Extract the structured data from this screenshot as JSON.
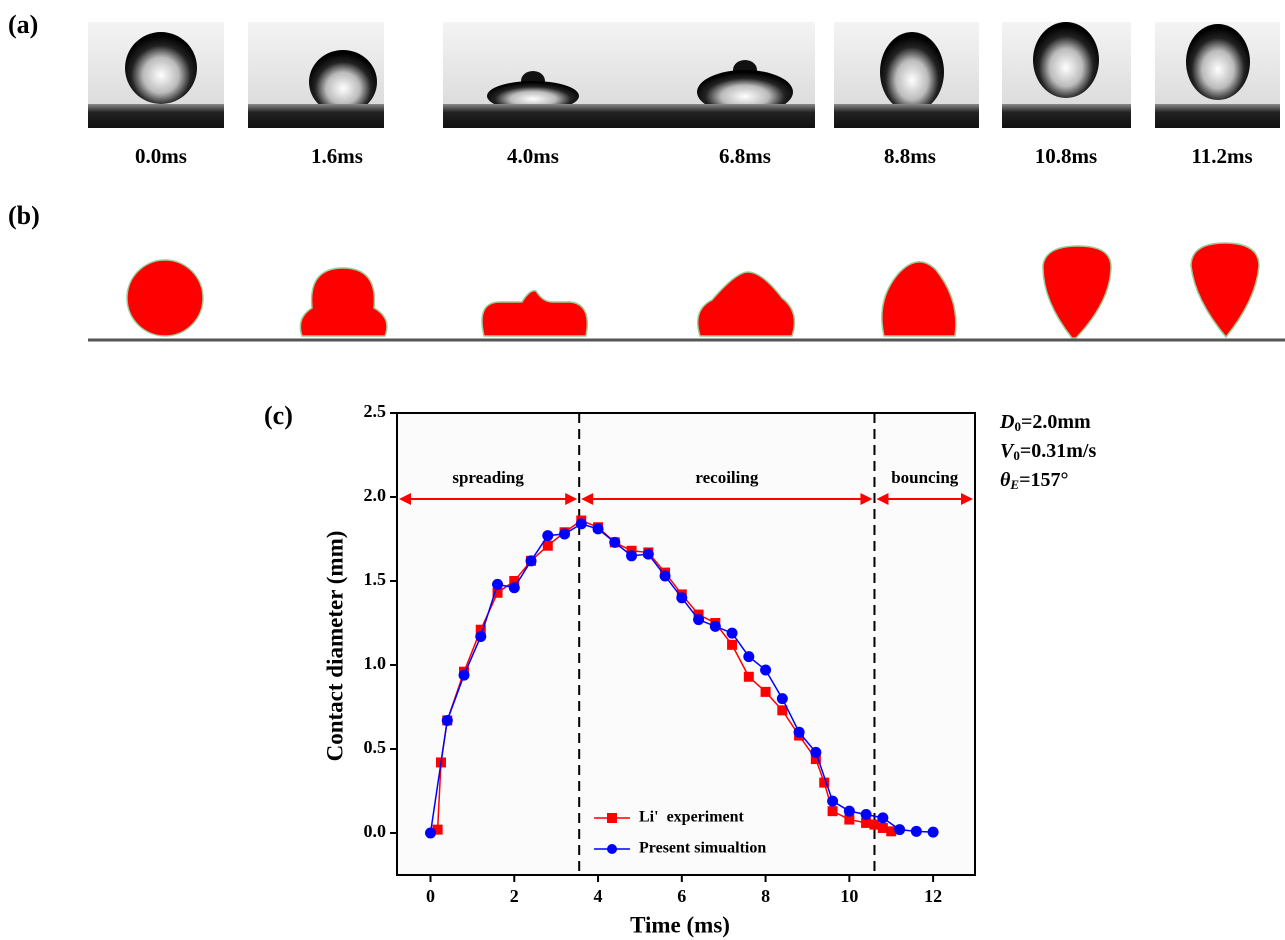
{
  "panels": [
    {
      "label": "(a)",
      "frames": [
        "0.0ms",
        "1.6ms",
        "4.0ms",
        "6.8ms",
        "8.8ms",
        "10.8ms",
        "11.2ms"
      ]
    },
    {
      "label": "(b)"
    }
  ],
  "chart_data": {
    "type": "line",
    "panel_label": "(c)",
    "x_label": "Time (ms)",
    "y_label": "Contact diameter (mm)",
    "xlim": [
      -0.8,
      13
    ],
    "ylim": [
      -0.25,
      2.5
    ],
    "xticks": [
      0,
      2,
      4,
      6,
      8,
      10,
      12
    ],
    "yticks": [
      {
        "value": 0,
        "label": "0.0"
      },
      0.5,
      {
        "value": 1,
        "label": "1.0"
      },
      1.5,
      {
        "value": 2,
        "label": "2.0"
      },
      2.5
    ],
    "legend": "lower center",
    "phases": [
      {
        "label": "spreading",
        "start": -0.8,
        "end": 3.55
      },
      {
        "label": "recoiling",
        "start": 3.55,
        "end": 10.6
      },
      {
        "label": "bouncing",
        "start": 10.6,
        "end": 13
      }
    ],
    "phase_color": "#ff0000",
    "parameters": [
      {
        "symbol": "D",
        "subscript": "0",
        "text": "=2.0mm"
      },
      {
        "symbol": "V",
        "subscript": "0",
        "text": "=0.31m/s"
      },
      {
        "symbol": "θ",
        "subscript": "E",
        "text": "=157°"
      }
    ],
    "series": [
      {
        "name": "Li'  experiment",
        "color": "#ff0000",
        "marker": "square",
        "x": [
          0.17,
          0.25,
          0.4,
          0.8,
          1.2,
          1.6,
          2.0,
          2.4,
          2.8,
          3.2,
          3.6,
          4.0,
          4.4,
          4.8,
          5.2,
          5.6,
          6.0,
          6.4,
          6.8,
          7.2,
          7.6,
          8.0,
          8.4,
          8.8,
          9.2,
          9.4,
          9.6,
          10.0,
          10.4,
          10.6,
          10.8,
          11.0
        ],
        "values": [
          0.02,
          0.42,
          0.67,
          0.96,
          1.21,
          1.43,
          1.5,
          1.62,
          1.71,
          1.79,
          1.86,
          1.82,
          1.73,
          1.68,
          1.67,
          1.55,
          1.42,
          1.3,
          1.25,
          1.12,
          0.93,
          0.84,
          0.73,
          0.58,
          0.44,
          0.3,
          0.13,
          0.08,
          0.06,
          0.05,
          0.03,
          0.01
        ]
      },
      {
        "name": "Present simualtion",
        "color": "#0000ff",
        "marker": "circle",
        "x": [
          0,
          0.4,
          0.8,
          1.2,
          1.6,
          2.0,
          2.4,
          2.8,
          3.2,
          3.6,
          4.0,
          4.4,
          4.8,
          5.2,
          5.6,
          6.0,
          6.4,
          6.8,
          7.2,
          7.6,
          8.0,
          8.4,
          8.8,
          9.2,
          9.6,
          10.0,
          10.4,
          10.8,
          11.2,
          11.6,
          12.0
        ],
        "values": [
          0,
          0.67,
          0.94,
          1.17,
          1.48,
          1.46,
          1.62,
          1.77,
          1.78,
          1.84,
          1.81,
          1.73,
          1.65,
          1.66,
          1.53,
          1.4,
          1.27,
          1.23,
          1.19,
          1.05,
          0.97,
          0.8,
          0.6,
          0.48,
          0.19,
          0.13,
          0.11,
          0.09,
          0.02,
          0.01,
          0.005
        ]
      }
    ]
  }
}
